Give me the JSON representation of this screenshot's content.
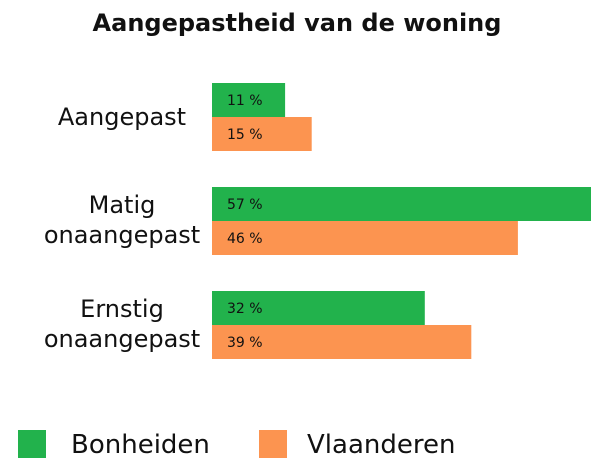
{
  "chart_data": {
    "type": "bar",
    "orientation": "horizontal",
    "title": "Aangepastheid van de woning",
    "categories": [
      [
        "Aangepast"
      ],
      [
        "Matig",
        "onaangepast"
      ],
      [
        "Ernstig",
        "onaangepast"
      ]
    ],
    "series": [
      {
        "name": "Bonheiden",
        "color": "#22b24c",
        "values": [
          11,
          57,
          32
        ],
        "labels": [
          "11 %",
          "57 %",
          "32 %"
        ]
      },
      {
        "name": "Vlaanderen",
        "color": "#fc9450",
        "values": [
          15,
          46,
          39
        ],
        "labels": [
          "15 %",
          "46 %",
          "39 %"
        ]
      }
    ],
    "xlim": [
      0,
      57
    ],
    "grid": false,
    "legend": "bottom"
  }
}
